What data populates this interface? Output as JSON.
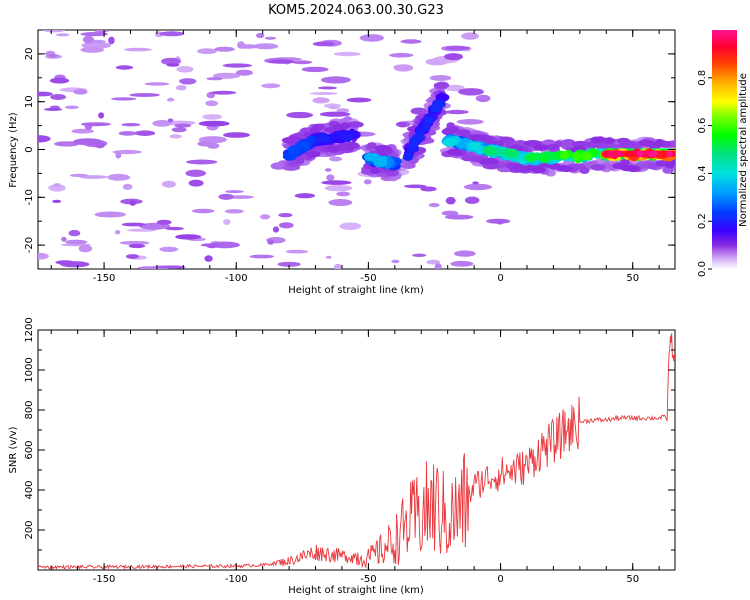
{
  "title": "KOM5.2024.063.00.30.G23",
  "chart_data": [
    {
      "type": "heatmap",
      "xlabel": "Height of straight line (km)",
      "ylabel": "Frequency (Hz)",
      "xlim": [
        -175,
        66
      ],
      "ylim": [
        -25,
        25
      ],
      "xticks": [
        "-150",
        "-100",
        "-50",
        "0",
        "50"
      ],
      "yticks": [
        "-20",
        "-10",
        "0",
        "10",
        "20"
      ],
      "colorbar": {
        "label": "Normalized spectral amplitude",
        "range": [
          0,
          1
        ],
        "ticks": [
          "0.0",
          "0.2",
          "0.4",
          "0.6",
          "0.8"
        ],
        "colormap": "gist_ncar_reversed"
      },
      "tracks": [
        {
          "from": [
            -80,
            -1
          ],
          "to": [
            -70,
            2
          ],
          "amplitude": 0.25
        },
        {
          "from": [
            -70,
            2
          ],
          "to": [
            -55,
            3
          ],
          "amplitude": 0.2
        },
        {
          "from": [
            -50,
            -2
          ],
          "to": [
            -40,
            -3
          ],
          "amplitude": 0.35
        },
        {
          "from": [
            -35,
            -1
          ],
          "to": [
            -22,
            11
          ],
          "amplitude": 0.22
        },
        {
          "from": [
            -20,
            2
          ],
          "to": [
            -5,
            0
          ],
          "amplitude": 0.4
        },
        {
          "from": [
            -5,
            0
          ],
          "to": [
            10,
            -2
          ],
          "amplitude": 0.5
        },
        {
          "from": [
            10,
            -2
          ],
          "to": [
            40,
            -1
          ],
          "amplitude": 0.6
        },
        {
          "from": [
            40,
            -1
          ],
          "to": [
            66,
            -1
          ],
          "amplitude": 0.95
        }
      ]
    },
    {
      "type": "line",
      "xlabel": "Height of straight line (km)",
      "ylabel": "SNR (v/v)",
      "xlim": [
        -175,
        66
      ],
      "ylim": [
        0,
        1200
      ],
      "xticks": [
        "-150",
        "-100",
        "-50",
        "0",
        "50"
      ],
      "yticks": [
        "200",
        "400",
        "600",
        "800",
        "1000",
        "1200"
      ],
      "color": "#e8383d",
      "series": [
        {
          "x": [
            -175,
            -150,
            -125,
            -100,
            -90,
            -80,
            -70,
            -60,
            -50,
            -45,
            -40,
            -35,
            -30,
            -25,
            -20,
            -15,
            -10,
            -5,
            0,
            5,
            10,
            15,
            20,
            25,
            30,
            35,
            40,
            45,
            50,
            55,
            60,
            63,
            64,
            65,
            66
          ],
          "values": [
            15,
            15,
            18,
            20,
            25,
            45,
            90,
            70,
            60,
            100,
            150,
            230,
            280,
            320,
            250,
            300,
            420,
            460,
            480,
            500,
            520,
            600,
            640,
            700,
            740,
            750,
            750,
            760,
            760,
            760,
            760,
            765,
            1150,
            1120,
            1050
          ]
        }
      ]
    }
  ]
}
